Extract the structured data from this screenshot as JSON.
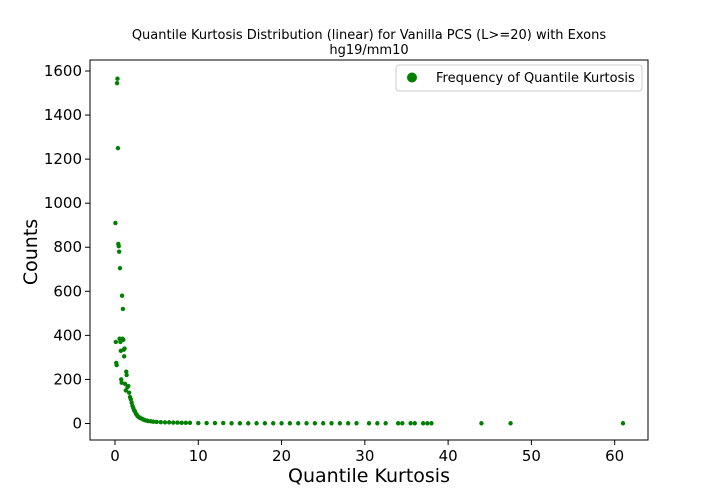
{
  "chart_data": {
    "type": "scatter",
    "title": "Quantile Kurtosis Distribution (linear) for Vanilla PCS (L>=20) with Exons",
    "subtitle": "hg19/mm10",
    "xlabel": "Quantile Kurtosis",
    "ylabel": "Counts",
    "xlim": [
      -3,
      64
    ],
    "ylim": [
      -75,
      1650
    ],
    "xticks": [
      0,
      10,
      20,
      30,
      40,
      50,
      60
    ],
    "yticks": [
      0,
      200,
      400,
      600,
      800,
      1000,
      1200,
      1400,
      1600
    ],
    "grid": false,
    "legend_position": "top-right",
    "series": [
      {
        "name": "Frequency of Quantile Kurtosis",
        "color": "#008000",
        "points": [
          [
            0.05,
            910
          ],
          [
            0.1,
            370
          ],
          [
            0.15,
            275
          ],
          [
            0.2,
            265
          ],
          [
            0.25,
            1545
          ],
          [
            0.3,
            1565
          ],
          [
            0.35,
            1250
          ],
          [
            0.4,
            815
          ],
          [
            0.45,
            805
          ],
          [
            0.5,
            780
          ],
          [
            0.55,
            385
          ],
          [
            0.6,
            705
          ],
          [
            0.65,
            370
          ],
          [
            0.7,
            330
          ],
          [
            0.75,
            200
          ],
          [
            0.8,
            185
          ],
          [
            0.85,
            580
          ],
          [
            0.9,
            385
          ],
          [
            0.95,
            520
          ],
          [
            1.0,
            380
          ],
          [
            1.05,
            335
          ],
          [
            1.1,
            305
          ],
          [
            1.15,
            340
          ],
          [
            1.2,
            180
          ],
          [
            1.3,
            150
          ],
          [
            1.35,
            235
          ],
          [
            1.4,
            220
          ],
          [
            1.5,
            165
          ],
          [
            1.6,
            170
          ],
          [
            1.7,
            140
          ],
          [
            1.8,
            120
          ],
          [
            1.9,
            110
          ],
          [
            2.0,
            95
          ],
          [
            2.1,
            80
          ],
          [
            2.2,
            70
          ],
          [
            2.3,
            60
          ],
          [
            2.4,
            55
          ],
          [
            2.5,
            45
          ],
          [
            2.6,
            40
          ],
          [
            2.7,
            35
          ],
          [
            2.8,
            30
          ],
          [
            2.9,
            28
          ],
          [
            3.0,
            25
          ],
          [
            3.2,
            22
          ],
          [
            3.4,
            18
          ],
          [
            3.6,
            15
          ],
          [
            3.8,
            13
          ],
          [
            4.0,
            11
          ],
          [
            4.3,
            10
          ],
          [
            4.6,
            8
          ],
          [
            5.0,
            7
          ],
          [
            5.5,
            6
          ],
          [
            6.0,
            5
          ],
          [
            6.5,
            5
          ],
          [
            7.0,
            4
          ],
          [
            7.5,
            4
          ],
          [
            8.0,
            3
          ],
          [
            8.5,
            3
          ],
          [
            9.0,
            3
          ],
          [
            10.0,
            2
          ],
          [
            11.0,
            2
          ],
          [
            12.0,
            2
          ],
          [
            13.0,
            2
          ],
          [
            14.0,
            1
          ],
          [
            15.0,
            1
          ],
          [
            16.0,
            1
          ],
          [
            17.0,
            1
          ],
          [
            18.0,
            1
          ],
          [
            19.0,
            1
          ],
          [
            20.0,
            1
          ],
          [
            21.0,
            1
          ],
          [
            22.0,
            1
          ],
          [
            23.0,
            1
          ],
          [
            24.0,
            1
          ],
          [
            25.0,
            1
          ],
          [
            26.0,
            1
          ],
          [
            27.0,
            1
          ],
          [
            28.0,
            1
          ],
          [
            29.0,
            1
          ],
          [
            30.5,
            1
          ],
          [
            31.5,
            1
          ],
          [
            32.5,
            1
          ],
          [
            34.0,
            1
          ],
          [
            34.5,
            1
          ],
          [
            35.5,
            1
          ],
          [
            36.0,
            1
          ],
          [
            37.0,
            1
          ],
          [
            37.5,
            1
          ],
          [
            38.0,
            1
          ],
          [
            44.0,
            1
          ],
          [
            47.5,
            1
          ],
          [
            61.0,
            1
          ]
        ]
      }
    ]
  }
}
